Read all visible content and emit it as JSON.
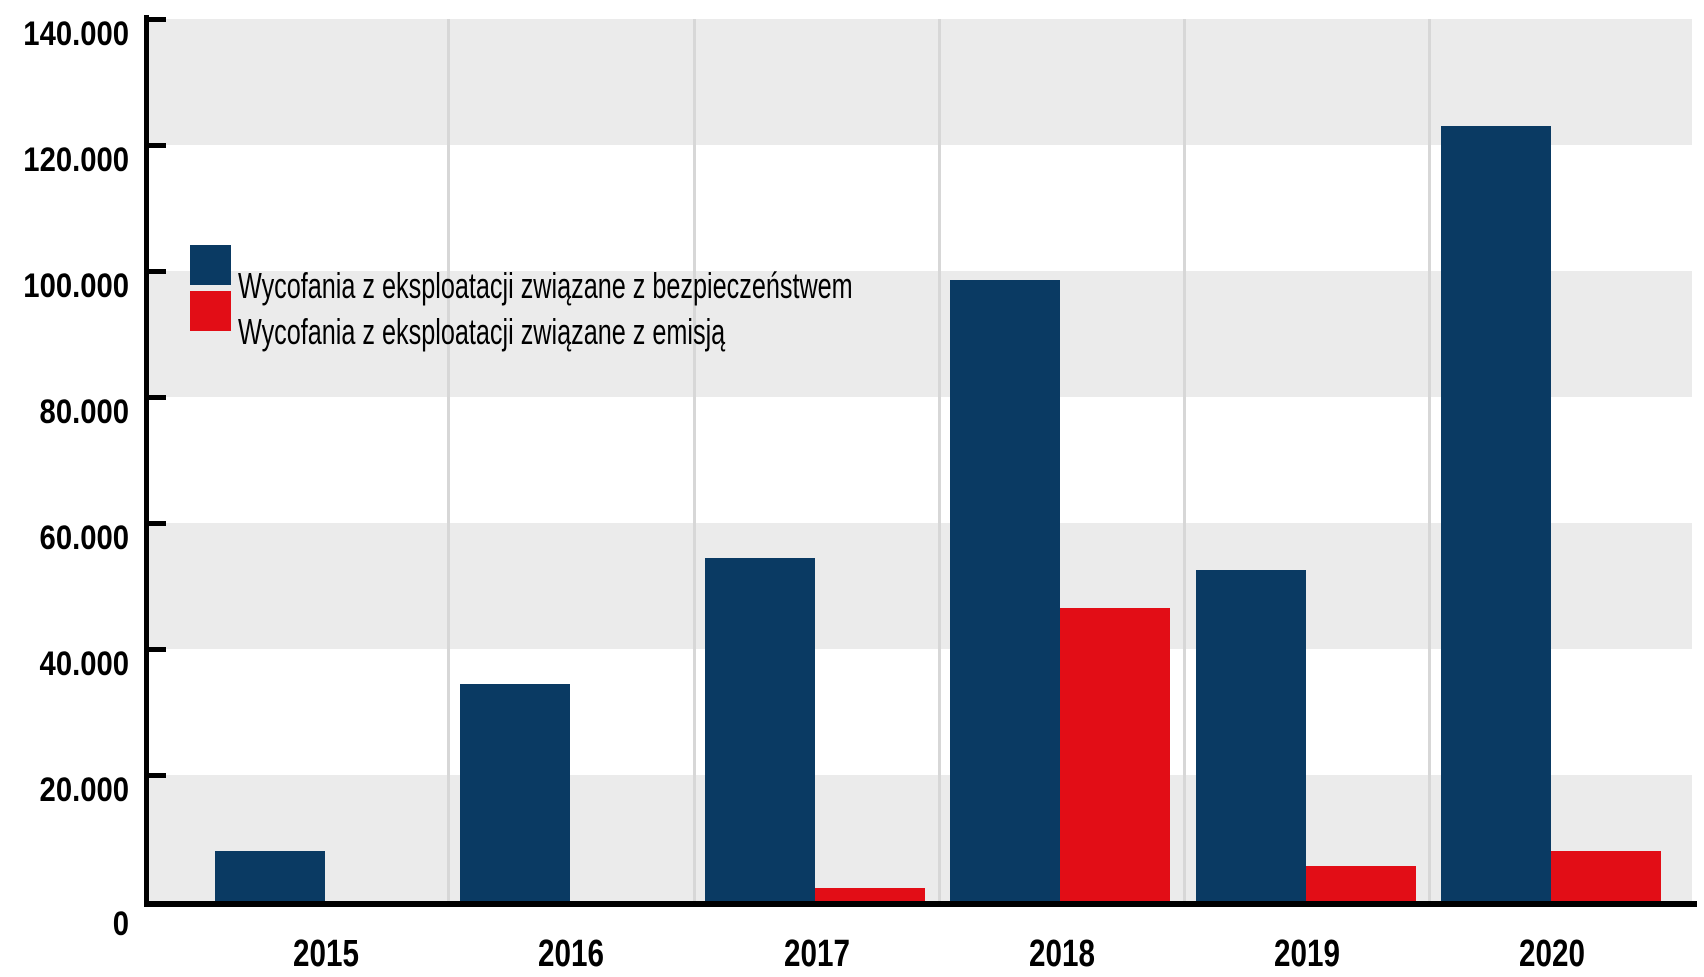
{
  "chart_data": {
    "type": "bar",
    "title": "",
    "categories": [
      "2015",
      "2016",
      "2017",
      "2018",
      "2019",
      "2020"
    ],
    "series": [
      {
        "name": "Wycofania z eksploatacji związane z bezpieczeństwem",
        "key": "safety",
        "color": "#0a3a63",
        "values": [
          8000,
          34500,
          54500,
          98500,
          52500,
          123000
        ]
      },
      {
        "name": "Wycofania z eksploatacji związane z emisją",
        "key": "emission",
        "color": "#e20d16",
        "values": [
          0,
          0,
          2000,
          46500,
          5500,
          8000
        ]
      }
    ],
    "xlabel": "",
    "ylabel": "",
    "ylim": [
      0,
      140000
    ],
    "ytick_step": 20000,
    "ytick_labels": [
      "0",
      "20.000",
      "40.000",
      "60.000",
      "80.000",
      "100.000",
      "120.000",
      "140.000"
    ],
    "grid": "horizontal gray stripes every 20.000 units; light vertical separators between year groups",
    "legend_position": "upper-left inside plot area",
    "colors": {
      "stripe_band": "#ebebeb",
      "gridline": "#d7d7d7",
      "axis": "#000000",
      "text": "#000000",
      "background": "#ffffff"
    }
  }
}
